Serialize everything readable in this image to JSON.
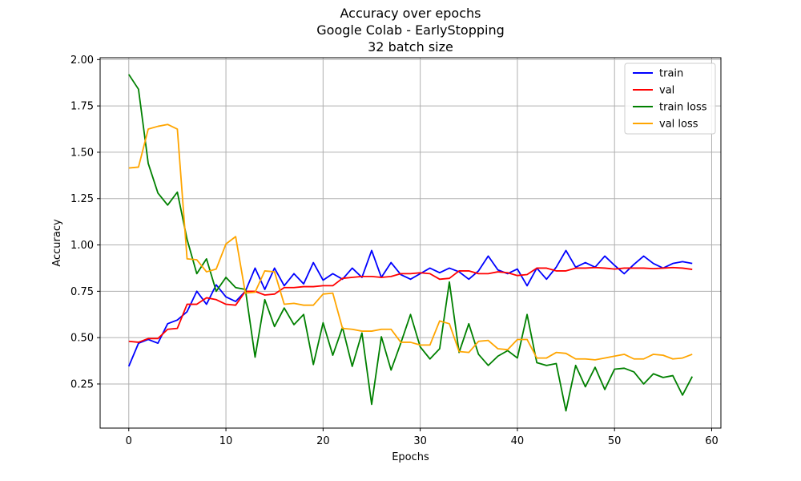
{
  "chart_data": {
    "type": "line",
    "title": [
      "Accuracy over epochs",
      "Google Colab - EarlyStopping",
      "32 batch size"
    ],
    "xlabel": "Epochs",
    "ylabel": "Accuracy",
    "xlim": [
      -2.95,
      60.95
    ],
    "ylim": [
      0.012,
      2.01
    ],
    "xticks": [
      0,
      10,
      20,
      30,
      40,
      50,
      60
    ],
    "yticks": [
      0.25,
      0.5,
      0.75,
      1.0,
      1.25,
      1.5,
      1.75,
      2.0
    ],
    "xtick_labels": [
      "0",
      "10",
      "20",
      "30",
      "40",
      "50",
      "60"
    ],
    "ytick_labels": [
      "0.25",
      "0.50",
      "0.75",
      "1.00",
      "1.25",
      "1.50",
      "1.75",
      "2.00"
    ],
    "grid": true,
    "legend_position": "top-right",
    "series": [
      {
        "name": "train",
        "color": "#0000ff",
        "values": [
          0.345,
          0.47,
          0.49,
          0.47,
          0.575,
          0.595,
          0.64,
          0.75,
          0.68,
          0.785,
          0.72,
          0.695,
          0.75,
          0.875,
          0.76,
          0.875,
          0.78,
          0.845,
          0.79,
          0.905,
          0.81,
          0.845,
          0.815,
          0.875,
          0.825,
          0.97,
          0.825,
          0.905,
          0.84,
          0.815,
          0.845,
          0.875,
          0.85,
          0.875,
          0.855,
          0.815,
          0.86,
          0.94,
          0.865,
          0.845,
          0.87,
          0.78,
          0.875,
          0.815,
          0.88,
          0.97,
          0.88,
          0.905,
          0.88,
          0.94,
          0.89,
          0.845,
          0.895,
          0.94,
          0.9,
          0.875,
          0.9,
          0.91,
          0.9
        ]
      },
      {
        "name": "val",
        "color": "#ff0000",
        "values": [
          0.48,
          0.475,
          0.495,
          0.495,
          0.545,
          0.55,
          0.68,
          0.68,
          0.715,
          0.705,
          0.68,
          0.675,
          0.75,
          0.75,
          0.73,
          0.735,
          0.77,
          0.77,
          0.775,
          0.775,
          0.78,
          0.78,
          0.82,
          0.825,
          0.83,
          0.83,
          0.825,
          0.83,
          0.845,
          0.845,
          0.85,
          0.845,
          0.815,
          0.82,
          0.86,
          0.86,
          0.845,
          0.845,
          0.855,
          0.85,
          0.835,
          0.84,
          0.875,
          0.875,
          0.86,
          0.86,
          0.875,
          0.875,
          0.878,
          0.875,
          0.87,
          0.875,
          0.875,
          0.875,
          0.872,
          0.875,
          0.878,
          0.875,
          0.868
        ]
      },
      {
        "name": "train loss",
        "color": "#008000",
        "values": [
          1.92,
          1.84,
          1.44,
          1.28,
          1.215,
          1.285,
          1.03,
          0.845,
          0.925,
          0.75,
          0.825,
          0.77,
          0.76,
          0.395,
          0.705,
          0.56,
          0.66,
          0.57,
          0.625,
          0.355,
          0.58,
          0.405,
          0.555,
          0.345,
          0.525,
          0.14,
          0.505,
          0.325,
          0.47,
          0.625,
          0.45,
          0.385,
          0.44,
          0.8,
          0.42,
          0.575,
          0.41,
          0.35,
          0.4,
          0.43,
          0.39,
          0.625,
          0.365,
          0.35,
          0.36,
          0.105,
          0.35,
          0.235,
          0.34,
          0.22,
          0.33,
          0.335,
          0.315,
          0.25,
          0.305,
          0.285,
          0.295,
          0.19,
          0.29
        ]
      },
      {
        "name": "val loss",
        "color": "#ffa500",
        "values": [
          1.415,
          1.42,
          1.625,
          1.64,
          1.65,
          1.625,
          0.925,
          0.92,
          0.855,
          0.87,
          1.005,
          1.045,
          0.74,
          0.745,
          0.86,
          0.855,
          0.68,
          0.685,
          0.675,
          0.675,
          0.735,
          0.74,
          0.55,
          0.545,
          0.535,
          0.535,
          0.545,
          0.545,
          0.475,
          0.475,
          0.46,
          0.46,
          0.59,
          0.575,
          0.425,
          0.42,
          0.48,
          0.485,
          0.44,
          0.435,
          0.49,
          0.49,
          0.39,
          0.39,
          0.42,
          0.415,
          0.385,
          0.385,
          0.38,
          0.39,
          0.4,
          0.41,
          0.385,
          0.385,
          0.41,
          0.405,
          0.385,
          0.39,
          0.41
        ]
      }
    ]
  }
}
